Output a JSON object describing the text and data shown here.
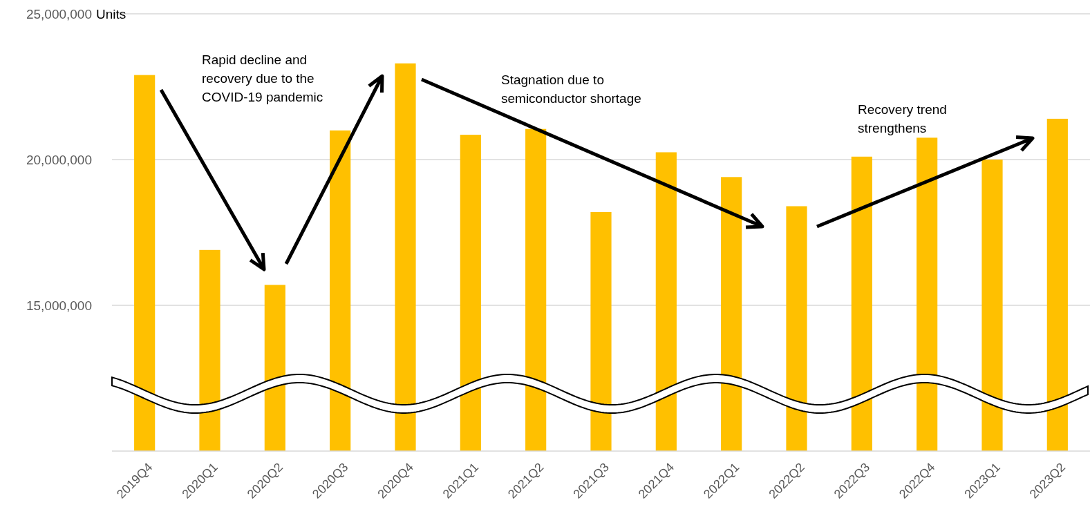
{
  "chart_data": {
    "type": "bar",
    "ylabel": "Units",
    "categories": [
      "2019Q4",
      "2020Q1",
      "2020Q2",
      "2020Q3",
      "2020Q4",
      "2021Q1",
      "2021Q2",
      "2021Q3",
      "2021Q4",
      "2022Q1",
      "2022Q2",
      "2022Q3",
      "2022Q4",
      "2023Q1",
      "2023Q2"
    ],
    "values": [
      22900000,
      16900000,
      15700000,
      21000000,
      23300000,
      20850000,
      21050000,
      18200000,
      20250000,
      19400000,
      18400000,
      20100000,
      20750000,
      20000000,
      21400000
    ],
    "color": "#ffc000",
    "ylim": [
      10000000,
      25000000
    ],
    "yticks": [
      {
        "value": 25000000,
        "label": "25,000,000"
      },
      {
        "value": 20000000,
        "label": "20,000,000"
      },
      {
        "value": 15000000,
        "label": "15,000,000"
      }
    ],
    "grid": "y",
    "annotations": [
      "Rapid decline and\nrecovery due to the\nCOVID-19 pandemic",
      "Stagnation due to\nsemiconductor shortage",
      "Recovery trend\nstrengthens"
    ]
  }
}
